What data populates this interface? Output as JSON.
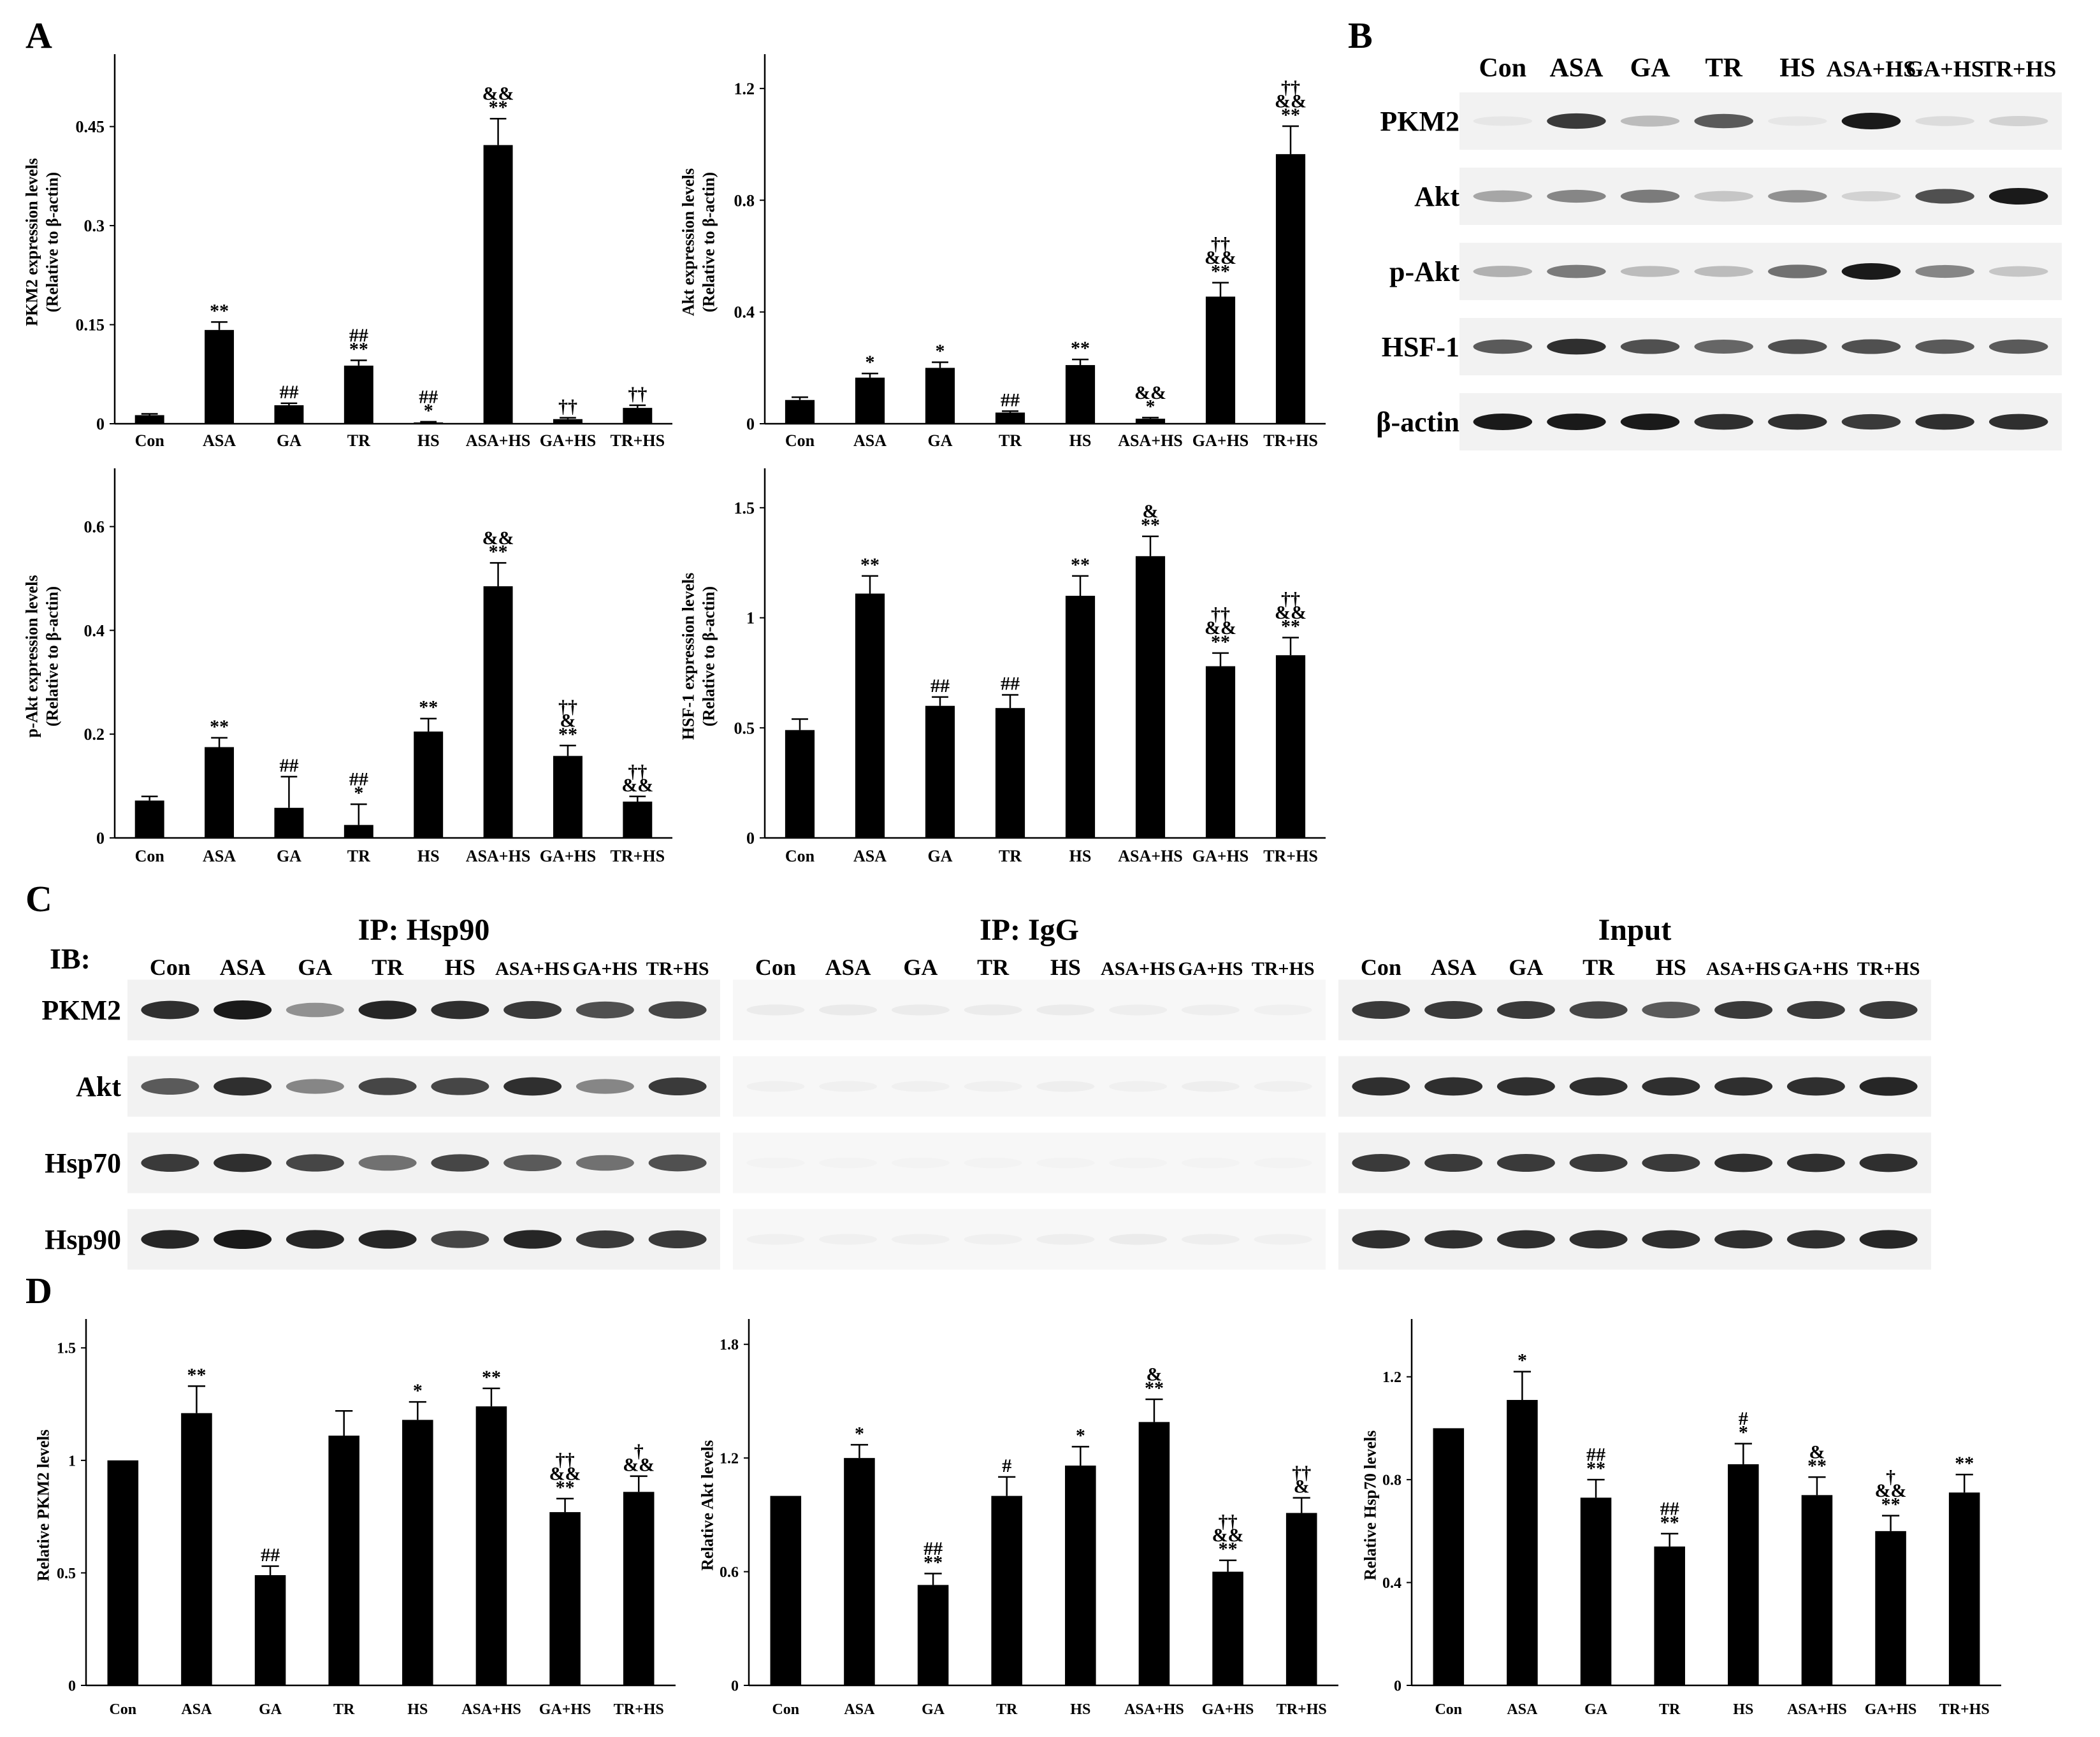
{
  "panel_labels": {
    "a": "A",
    "b": "B",
    "c": "C",
    "d": "D"
  },
  "groups": [
    "Con",
    "ASA",
    "GA",
    "TR",
    "HS",
    "ASA+HS",
    "GA+HS",
    "TR+HS"
  ],
  "colors": {
    "bar": "#000000",
    "axis": "#000000",
    "blot_bg": "#f2f2f2",
    "band": "#1a1a1a"
  },
  "panel_b": {
    "lanes": [
      "Con",
      "ASA",
      "GA",
      "TR",
      "HS",
      "ASA+HS",
      "GA+HS",
      "TR+HS"
    ],
    "rows": [
      {
        "label": "PKM2",
        "intensity": [
          0.05,
          0.85,
          0.25,
          0.7,
          0.05,
          1.0,
          0.1,
          0.15
        ]
      },
      {
        "label": "Akt",
        "intensity": [
          0.35,
          0.5,
          0.55,
          0.2,
          0.45,
          0.15,
          0.75,
          1.0
        ]
      },
      {
        "label": "p-Akt",
        "intensity": [
          0.3,
          0.55,
          0.25,
          0.25,
          0.6,
          1.0,
          0.5,
          0.2
        ]
      },
      {
        "label": "HSF-1",
        "intensity": [
          0.7,
          0.9,
          0.75,
          0.65,
          0.75,
          0.75,
          0.7,
          0.7
        ]
      },
      {
        "label": "β-actin",
        "intensity": [
          1.0,
          1.0,
          1.0,
          0.9,
          0.9,
          0.85,
          0.9,
          0.9
        ]
      }
    ]
  },
  "panel_c": {
    "ib_label": "IB:",
    "blocks": [
      {
        "title": "IP: Hsp90",
        "lanes": [
          "Con",
          "ASA",
          "GA",
          "TR",
          "HS",
          "ASA+HS",
          "GA+HS",
          "TR+HS"
        ],
        "rows": [
          {
            "label": "PKM2",
            "intensity": [
              0.9,
              1.0,
              0.45,
              0.95,
              0.9,
              0.85,
              0.75,
              0.8
            ]
          },
          {
            "label": "Akt",
            "intensity": [
              0.7,
              0.9,
              0.5,
              0.8,
              0.8,
              0.9,
              0.5,
              0.85
            ]
          },
          {
            "label": "Hsp70",
            "intensity": [
              0.85,
              0.9,
              0.8,
              0.6,
              0.8,
              0.7,
              0.6,
              0.75
            ]
          },
          {
            "label": "Hsp90",
            "intensity": [
              0.95,
              1.0,
              0.95,
              0.95,
              0.8,
              0.95,
              0.85,
              0.85
            ]
          }
        ]
      },
      {
        "title": "IP: IgG",
        "lanes": [
          "Con",
          "ASA",
          "GA",
          "TR",
          "HS",
          "ASA+HS",
          "GA+HS",
          "TR+HS"
        ],
        "rows": [
          {
            "label": "PKM2",
            "intensity": [
              0.05,
              0.06,
              0.05,
              0.05,
              0.05,
              0.04,
              0.04,
              0.03
            ]
          },
          {
            "label": "Akt",
            "intensity": [
              0.03,
              0.03,
              0.03,
              0.03,
              0.04,
              0.03,
              0.04,
              0.03
            ]
          },
          {
            "label": "Hsp70",
            "intensity": [
              0.02,
              0.02,
              0.02,
              0.02,
              0.02,
              0.02,
              0.02,
              0.02
            ]
          },
          {
            "label": "Hsp90",
            "intensity": [
              0.03,
              0.03,
              0.03,
              0.03,
              0.04,
              0.05,
              0.04,
              0.03
            ]
          }
        ]
      },
      {
        "title": "Input",
        "lanes": [
          "Con",
          "ASA",
          "GA",
          "TR",
          "HS",
          "ASA+HS",
          "GA+HS",
          "TR+HS"
        ],
        "rows": [
          {
            "label": "PKM2",
            "intensity": [
              0.85,
              0.85,
              0.85,
              0.8,
              0.7,
              0.85,
              0.85,
              0.85
            ]
          },
          {
            "label": "Akt",
            "intensity": [
              0.9,
              0.9,
              0.9,
              0.9,
              0.9,
              0.9,
              0.9,
              0.95
            ]
          },
          {
            "label": "Hsp70",
            "intensity": [
              0.85,
              0.85,
              0.85,
              0.85,
              0.85,
              0.9,
              0.9,
              0.9
            ]
          },
          {
            "label": "Hsp90",
            "intensity": [
              0.9,
              0.9,
              0.9,
              0.9,
              0.9,
              0.9,
              0.9,
              0.95
            ]
          }
        ]
      }
    ]
  },
  "chart_data": [
    {
      "panel": "A",
      "type": "bar",
      "title": "",
      "xlabel": "",
      "ylabel": "PKM2 expression levels (Relative to β-actin)",
      "ylabel_lines": [
        "PKM2 expression levels",
        "(Relative to β-actin)"
      ],
      "categories": [
        "Con",
        "ASA",
        "GA",
        "TR",
        "HS",
        "ASA+HS",
        "GA+HS",
        "TR+HS"
      ],
      "values": [
        0.013,
        0.142,
        0.028,
        0.088,
        0.002,
        0.422,
        0.007,
        0.024
      ],
      "errors": [
        0.002,
        0.012,
        0.003,
        0.008,
        0.001,
        0.04,
        0.002,
        0.004
      ],
      "annotations": [
        [],
        [
          "**"
        ],
        [
          "##"
        ],
        [
          "##",
          "**"
        ],
        [
          "##",
          "*"
        ],
        [
          "&&",
          "**"
        ],
        [
          "††"
        ],
        [
          "††"
        ]
      ],
      "ylim": [
        0,
        0.55
      ],
      "yticks": [
        "0",
        "0.15",
        "0.3",
        "0.45"
      ],
      "ytick_values": [
        0,
        0.15,
        0.3,
        0.45
      ]
    },
    {
      "panel": "A",
      "type": "bar",
      "title": "",
      "xlabel": "",
      "ylabel": "Akt expression levels (Relative to β-actin)",
      "ylabel_lines": [
        "Akt expression levels",
        "(Relative to β-actin)"
      ],
      "categories": [
        "Con",
        "ASA",
        "GA",
        "TR",
        "HS",
        "ASA+HS",
        "GA+HS",
        "TR+HS"
      ],
      "values": [
        0.085,
        0.165,
        0.2,
        0.04,
        0.21,
        0.018,
        0.455,
        0.965
      ],
      "errors": [
        0.01,
        0.015,
        0.02,
        0.005,
        0.02,
        0.004,
        0.05,
        0.1
      ],
      "annotations": [
        [],
        [
          "*"
        ],
        [
          "*"
        ],
        [
          "##"
        ],
        [
          "**"
        ],
        [
          "&&",
          "*"
        ],
        [
          "††",
          "&&",
          "**"
        ],
        [
          "††",
          "&&",
          "**"
        ]
      ],
      "ylim": [
        0,
        1.3
      ],
      "yticks": [
        "0",
        "0.4",
        "0.8",
        "1.2"
      ],
      "ytick_values": [
        0,
        0.4,
        0.8,
        1.2
      ]
    },
    {
      "panel": "A",
      "type": "bar",
      "title": "",
      "xlabel": "",
      "ylabel": "p-Akt expression levels (Relative to β-actin)",
      "ylabel_lines": [
        "p-Akt expression levels",
        "(Relative to β-actin)"
      ],
      "categories": [
        "Con",
        "ASA",
        "GA",
        "TR",
        "HS",
        "ASA+HS",
        "GA+HS",
        "TR+HS"
      ],
      "values": [
        0.072,
        0.175,
        0.058,
        0.025,
        0.205,
        0.485,
        0.158,
        0.07
      ],
      "errors": [
        0.008,
        0.018,
        0.06,
        0.04,
        0.025,
        0.045,
        0.02,
        0.01
      ],
      "annotations": [
        [],
        [
          "**"
        ],
        [
          "##"
        ],
        [
          "##",
          "*"
        ],
        [
          "**"
        ],
        [
          "&&",
          "**"
        ],
        [
          "††",
          "&",
          "**"
        ],
        [
          "††",
          "&&"
        ]
      ],
      "ylim": [
        0,
        0.7
      ],
      "yticks": [
        "0",
        "0.2",
        "0.4",
        "0.6"
      ],
      "ytick_values": [
        0,
        0.2,
        0.4,
        0.6
      ]
    },
    {
      "panel": "A",
      "type": "bar",
      "title": "",
      "xlabel": "",
      "ylabel": "HSF-1 expression levels (Relative to β-actin)",
      "ylabel_lines": [
        "HSF-1 expression levels",
        "(Relative to β-actin)"
      ],
      "categories": [
        "Con",
        "ASA",
        "GA",
        "TR",
        "HS",
        "ASA+HS",
        "GA+HS",
        "TR+HS"
      ],
      "values": [
        0.49,
        1.11,
        0.6,
        0.59,
        1.1,
        1.28,
        0.78,
        0.83
      ],
      "errors": [
        0.05,
        0.08,
        0.04,
        0.06,
        0.09,
        0.09,
        0.06,
        0.08
      ],
      "annotations": [
        [],
        [
          "**"
        ],
        [
          "##"
        ],
        [
          "##"
        ],
        [
          "**"
        ],
        [
          "&",
          "**"
        ],
        [
          "††",
          "&&",
          "**"
        ],
        [
          "††",
          "&&",
          "**"
        ]
      ],
      "ylim": [
        0,
        1.65
      ],
      "yticks": [
        "0",
        "0.5",
        "1",
        "1.5"
      ],
      "ytick_values": [
        0,
        0.5,
        1,
        1.5
      ]
    },
    {
      "panel": "D",
      "type": "bar",
      "title": "",
      "xlabel": "",
      "ylabel": "Relative PKM2 levels",
      "ylabel_lines": [
        "Relative PKM2 levels"
      ],
      "categories": [
        "Con",
        "ASA",
        "GA",
        "TR",
        "HS",
        "ASA+HS",
        "GA+HS",
        "TR+HS"
      ],
      "values": [
        1.0,
        1.21,
        0.49,
        1.11,
        1.18,
        1.24,
        0.77,
        0.86
      ],
      "errors": [
        0.0,
        0.12,
        0.04,
        0.11,
        0.08,
        0.08,
        0.06,
        0.07
      ],
      "annotations": [
        [],
        [
          "**"
        ],
        [
          "##"
        ],
        [],
        [
          "*"
        ],
        [
          "**"
        ],
        [
          "††",
          "&&",
          "**"
        ],
        [
          "†",
          "&&"
        ]
      ],
      "ylim": [
        0,
        1.6
      ],
      "yticks": [
        "0",
        "0.5",
        "1",
        "1.5"
      ],
      "ytick_values": [
        0,
        0.5,
        1,
        1.5
      ]
    },
    {
      "panel": "D",
      "type": "bar",
      "title": "",
      "xlabel": "",
      "ylabel": "Relative Akt levels",
      "ylabel_lines": [
        "Relative Akt levels"
      ],
      "categories": [
        "Con",
        "ASA",
        "GA",
        "TR",
        "HS",
        "ASA+HS",
        "GA+HS",
        "TR+HS"
      ],
      "values": [
        1.0,
        1.2,
        0.53,
        1.0,
        1.16,
        1.39,
        0.6,
        0.91
      ],
      "errors": [
        0.0,
        0.07,
        0.06,
        0.1,
        0.1,
        0.12,
        0.06,
        0.08
      ],
      "annotations": [
        [],
        [
          "*"
        ],
        [
          "##",
          "**"
        ],
        [
          "#"
        ],
        [
          "*"
        ],
        [
          "&",
          "**"
        ],
        [
          "††",
          "&&",
          "**"
        ],
        [
          "††",
          "&"
        ]
      ],
      "ylim": [
        0,
        1.9
      ],
      "yticks": [
        "0",
        "0.6",
        "1.2",
        "1.8"
      ],
      "ytick_values": [
        0,
        0.6,
        1.2,
        1.8
      ]
    },
    {
      "panel": "D",
      "type": "bar",
      "title": "",
      "xlabel": "",
      "ylabel": "Relative Hsp70 levels",
      "ylabel_lines": [
        "Relative Hsp70 levels"
      ],
      "categories": [
        "Con",
        "ASA",
        "GA",
        "TR",
        "HS",
        "ASA+HS",
        "GA+HS",
        "TR+HS"
      ],
      "values": [
        1.0,
        1.11,
        0.73,
        0.54,
        0.86,
        0.74,
        0.6,
        0.75
      ],
      "errors": [
        0.0,
        0.11,
        0.07,
        0.05,
        0.08,
        0.07,
        0.06,
        0.07
      ],
      "annotations": [
        [],
        [
          "*"
        ],
        [
          "##",
          "**"
        ],
        [
          "##",
          "**"
        ],
        [
          "#",
          "*"
        ],
        [
          "&",
          "**"
        ],
        [
          "†",
          "&&",
          "**"
        ],
        [
          "**"
        ]
      ],
      "ylim": [
        0,
        1.4
      ],
      "yticks": [
        "0",
        "0.4",
        "0.8",
        "1.2"
      ],
      "ytick_values": [
        0,
        0.4,
        0.8,
        1.2
      ]
    }
  ]
}
